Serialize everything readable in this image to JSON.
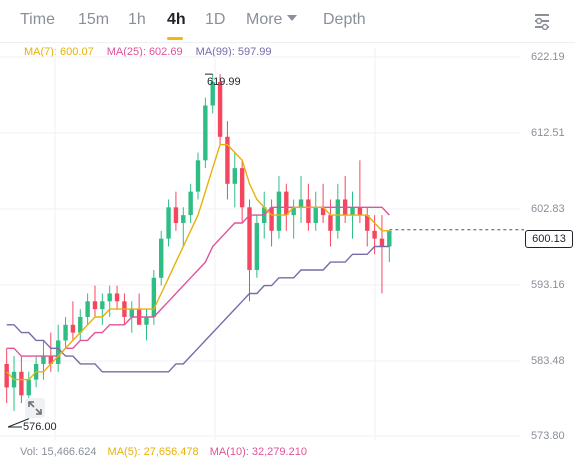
{
  "tabs": [
    {
      "label": "Time",
      "active": false
    },
    {
      "label": "15m",
      "active": false
    },
    {
      "label": "1h",
      "active": false
    },
    {
      "label": "4h",
      "active": true
    },
    {
      "label": "1D",
      "active": false
    }
  ],
  "more_label": "More",
  "depth_label": "Depth",
  "settings_icon": "chart-settings-icon",
  "colors": {
    "up": "#2ebd85",
    "down": "#f6465d",
    "ma7": "#e7b10a",
    "ma25": "#e0539a",
    "ma99": "#7a6aaa",
    "accent": "#f0b90b"
  },
  "ma_legend": {
    "ma7": "MA(7): 600.07",
    "ma25": "MA(25): 602.69",
    "ma99": "MA(99): 597.99"
  },
  "price_axis": [
    "622.19",
    "612.51",
    "602.83",
    "593.16",
    "583.48",
    "573.80"
  ],
  "current_price": "600.13",
  "high_label": "619.99",
  "low_label": "576.00",
  "volume_legend": {
    "vol": "Vol: 15,466.624",
    "ma5": "MA(5): 27,656.478",
    "ma10": "MA(10): 32,279.210"
  },
  "chart_data": {
    "type": "candlestick",
    "ylim": [
      573.8,
      622.19
    ],
    "ohlc": [
      [
        583,
        585,
        578,
        580
      ],
      [
        580,
        584,
        577,
        582
      ],
      [
        582,
        584,
        578,
        579
      ],
      [
        579,
        582,
        576,
        581
      ],
      [
        581,
        584,
        580,
        583
      ],
      [
        583,
        586,
        581,
        584
      ],
      [
        584,
        587,
        582,
        583
      ],
      [
        583,
        588,
        582,
        586
      ],
      [
        586,
        589,
        585,
        588
      ],
      [
        588,
        591,
        586,
        587
      ],
      [
        587,
        590,
        586,
        589
      ],
      [
        589,
        592,
        588,
        591
      ],
      [
        591,
        593,
        589,
        590
      ],
      [
        590,
        592,
        588,
        591
      ],
      [
        591,
        593,
        589,
        592
      ],
      [
        592,
        593,
        590,
        591
      ],
      [
        591,
        592,
        588,
        589
      ],
      [
        589,
        591,
        587,
        590
      ],
      [
        590,
        592,
        588,
        588
      ],
      [
        588,
        590,
        586,
        589
      ],
      [
        589,
        595,
        588,
        594
      ],
      [
        594,
        600,
        593,
        599
      ],
      [
        599,
        604,
        598,
        603
      ],
      [
        603,
        605,
        600,
        601
      ],
      [
        601,
        603,
        598,
        602
      ],
      [
        602,
        606,
        601,
        605
      ],
      [
        605,
        610,
        604,
        609
      ],
      [
        609,
        617,
        608,
        616
      ],
      [
        616,
        620,
        615,
        619
      ],
      [
        619,
        620,
        611,
        612
      ],
      [
        612,
        614,
        604,
        606
      ],
      [
        606,
        610,
        603,
        608
      ],
      [
        608,
        609,
        601,
        603
      ],
      [
        603,
        604,
        591,
        595
      ],
      [
        595,
        602,
        594,
        601
      ],
      [
        601,
        605,
        599,
        603
      ],
      [
        603,
        604,
        598,
        600
      ],
      [
        600,
        607,
        599,
        605
      ],
      [
        605,
        606,
        600,
        602
      ],
      [
        602,
        604,
        599,
        603
      ],
      [
        603,
        607,
        601,
        604
      ],
      [
        604,
        606,
        600,
        601
      ],
      [
        601,
        605,
        600,
        603
      ],
      [
        603,
        606,
        601,
        602
      ],
      [
        602,
        604,
        598,
        600
      ],
      [
        600,
        606,
        599,
        604
      ],
      [
        604,
        607,
        601,
        602
      ],
      [
        602,
        605,
        599,
        603
      ],
      [
        603,
        609,
        601,
        602
      ],
      [
        602,
        603,
        598,
        600
      ],
      [
        600,
        602,
        597,
        599
      ],
      [
        599,
        602,
        592,
        598
      ],
      [
        598,
        600,
        596,
        600
      ]
    ],
    "ma7": [
      582,
      581,
      581,
      581,
      582,
      582,
      583,
      584,
      585,
      586,
      587,
      588,
      589,
      589,
      590,
      590,
      590,
      590,
      590,
      590,
      590,
      592,
      594,
      596,
      598,
      600,
      602,
      605,
      608,
      611,
      611,
      610,
      609,
      606,
      604,
      603,
      602,
      602,
      602,
      603,
      603,
      603,
      603,
      603,
      602,
      602,
      602,
      602,
      602,
      602,
      601,
      600,
      600
    ],
    "ma25": [
      585,
      585,
      584,
      584,
      584,
      584,
      584,
      584,
      585,
      585,
      586,
      586,
      587,
      587,
      588,
      588,
      588,
      589,
      589,
      589,
      589,
      590,
      591,
      592,
      593,
      594,
      595,
      596,
      598,
      599,
      600,
      601,
      601,
      602,
      602,
      602,
      603,
      603,
      603,
      603,
      603,
      603,
      603,
      603,
      603,
      603,
      603,
      603,
      603,
      603,
      603,
      603,
      602
    ],
    "ma99": [
      588,
      588,
      587,
      587,
      586,
      586,
      585,
      585,
      584,
      584,
      583,
      583,
      583,
      582,
      582,
      582,
      582,
      582,
      582,
      582,
      582,
      582,
      582,
      583,
      583,
      584,
      585,
      586,
      587,
      588,
      589,
      590,
      591,
      592,
      592,
      593,
      593,
      594,
      594,
      594,
      595,
      595,
      595,
      595,
      596,
      596,
      596,
      597,
      597,
      597,
      598,
      598,
      598
    ]
  }
}
